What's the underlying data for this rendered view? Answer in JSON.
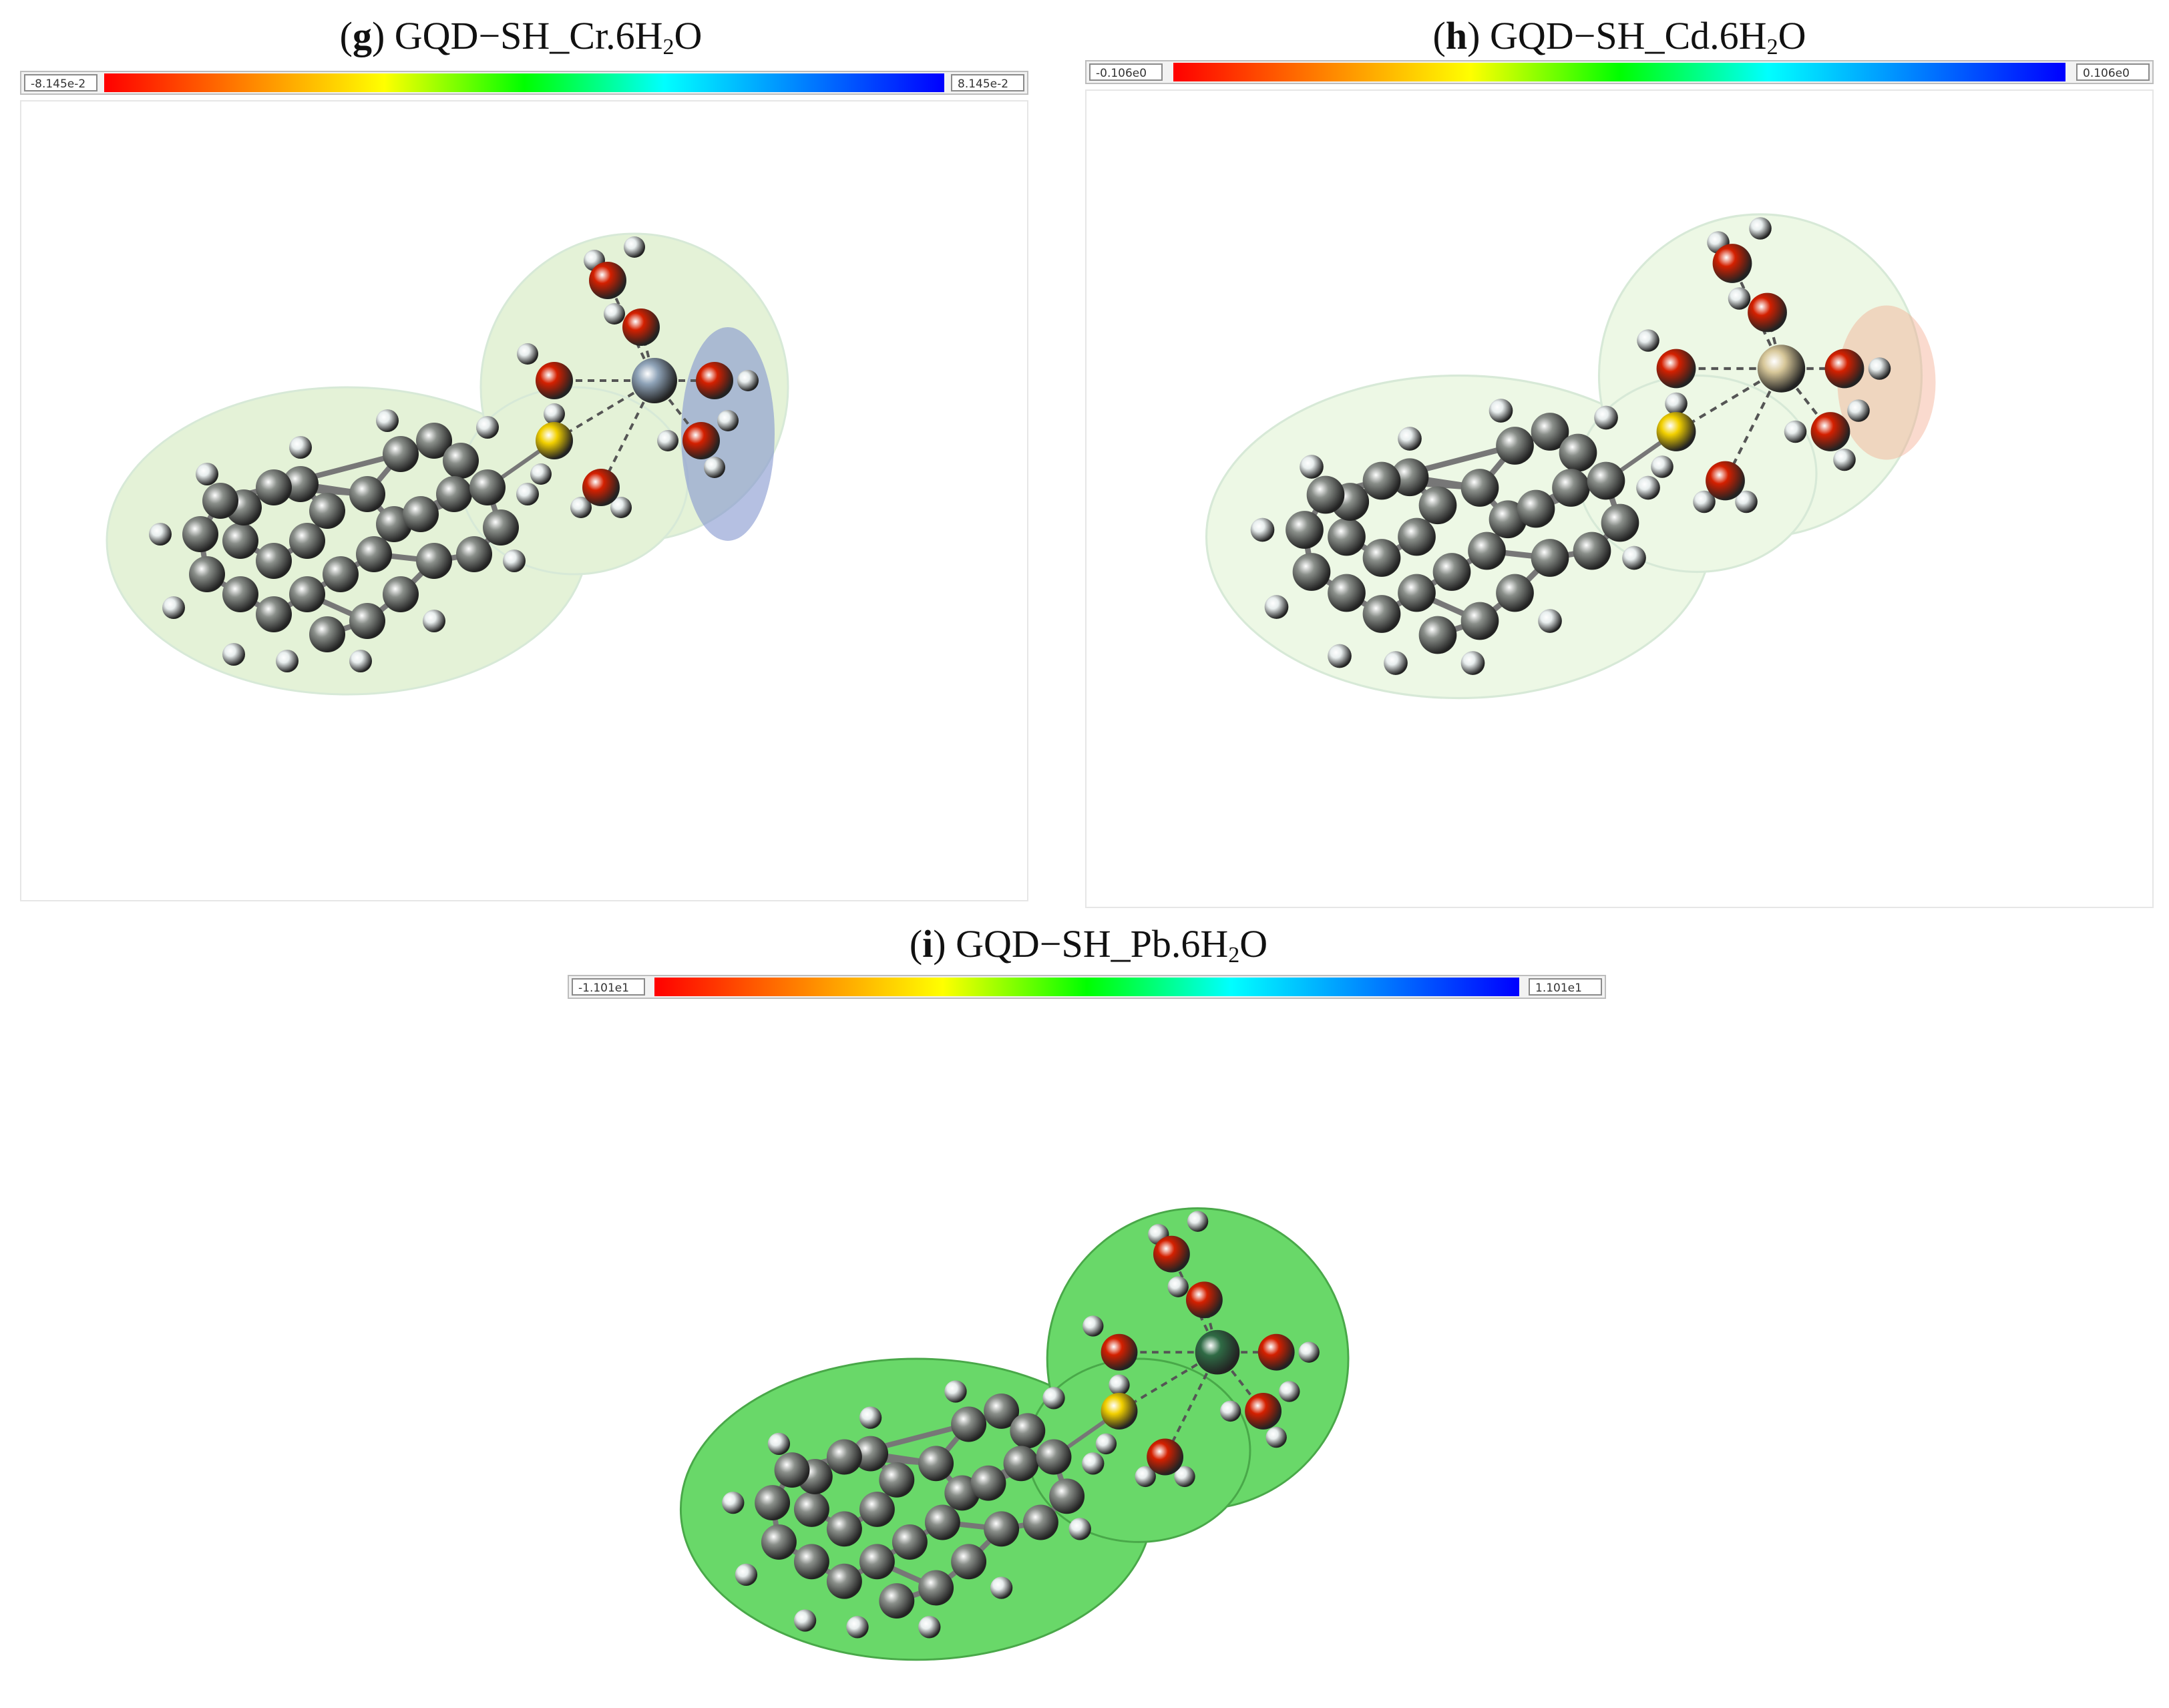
{
  "panels": [
    {
      "letter": "g",
      "label_prefix": "GQD−SH_Cr.6H",
      "label_sub": "2",
      "label_suffix": "O",
      "scale_min": "-8.145e-2",
      "scale_max": "8.145e-2",
      "surface_color": "#cfe8b8",
      "metal_color": "#8fa3b8"
    },
    {
      "letter": "h",
      "label_prefix": "GQD−SH_Cd.6H",
      "label_sub": "2",
      "label_suffix": "O",
      "scale_min": "-0.106e0",
      "scale_max": "0.106e0",
      "surface_color": "#dff3d0",
      "metal_color": "#d8c89a"
    },
    {
      "letter": "i",
      "label_prefix": "GQD−SH_Pb.6H",
      "label_sub": "2",
      "label_suffix": "O",
      "scale_min": "-1.101e1",
      "scale_max": "1.101e1",
      "surface_color": "#4fd24f",
      "metal_color": "#2f6b45"
    }
  ],
  "colors": {
    "carbon": "#8a8f8a",
    "hydrogen": "#e8eeee",
    "oxygen": "#d42000",
    "sulfur": "#f2d000"
  }
}
